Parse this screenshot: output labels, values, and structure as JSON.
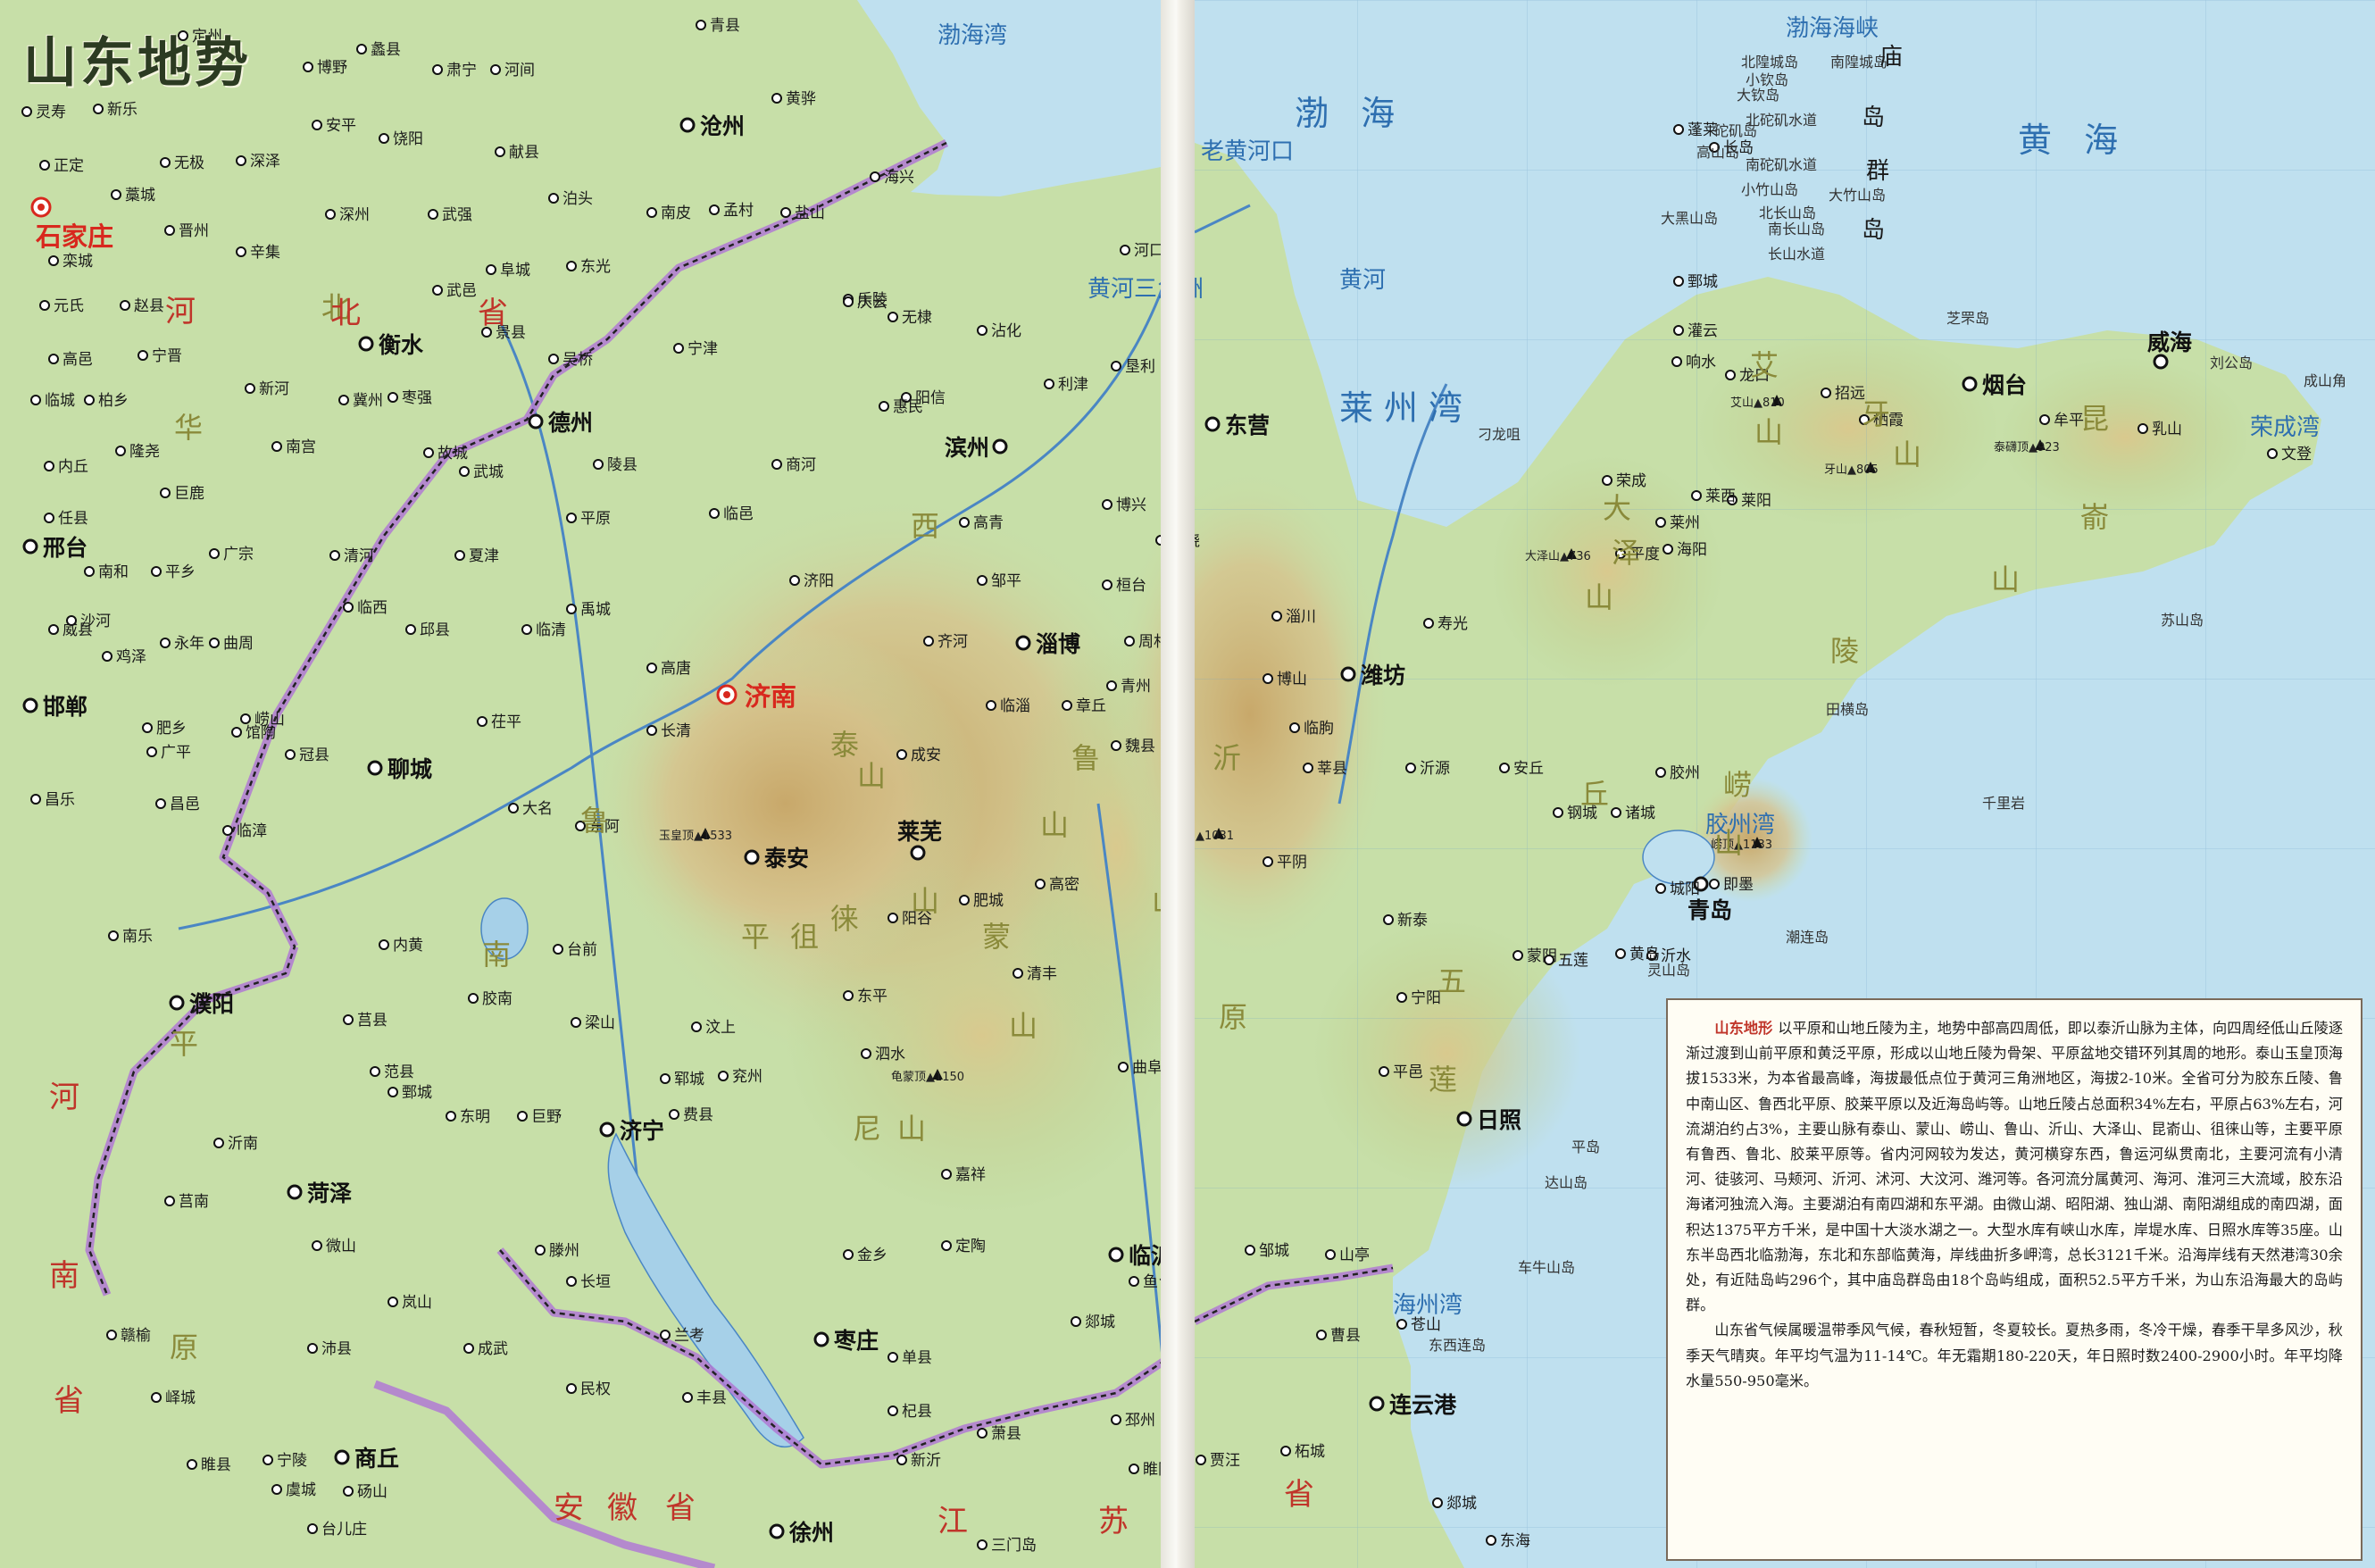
{
  "title": "山东地势",
  "legend": {
    "lead": "山东地形",
    "paragraphs": [
      "以平原和山地丘陵为主，地势中部高四周低，即以泰沂山脉为主体，向四周经低山丘陵逐渐过渡到山前平原和黄泛平原，形成以山地丘陵为骨架、平原盆地交错环列其周的地形。泰山玉皇顶海拔1533米，为本省最高峰，海拔最低点位于黄河三角洲地区，海拔2-10米。全省可分为胶东丘陵、鲁中南山区、鲁西北平原、胶莱平原以及近海岛屿等。山地丘陵占总面积34%左右，平原占63%左右，河流湖泊约占3%，主要山脉有泰山、蒙山、崂山、鲁山、沂山、大泽山、昆嵛山、徂徕山等，主要平原有鲁西、鲁北、胶莱平原等。省内河网较为发达，黄河横穿东西，鲁运河纵贯南北，主要河流有小清河、徒骇河、马颊河、沂河、沭河、大汶河、潍河等。各河流分属黄河、海河、淮河三大流域，胶东沿海诸河独流入海。主要湖泊有南四湖和东平湖。由微山湖、昭阳湖、独山湖、南阳湖组成的南四湖，面积达1375平方千米，是中国十大淡水湖之一。大型水库有峡山水库，岸堤水库、日照水库等35座。山东半岛西北临渤海，东北和东部临黄海，岸线曲折多岬湾，总长3121千米。沿海岸线有天然港湾30余处，有近陆岛屿296个，其中庙岛群岛由18个岛屿组成，面积52.5平方千米，为山东沿海最大的岛屿群。",
      "山东省气候属暖温带季风气候，春秋短暂，冬夏较长。夏热多雨，冬冷干燥，春季干旱多风沙，秋季天气晴爽。年平均气温为11-14℃。年无霜期180-220天，年日照时数2400-2900小时。年平均降水量550-950毫米。"
    ]
  },
  "capitals": {
    "shijiazhuang": "石家庄",
    "jinan": "济南"
  },
  "major_cities": {
    "dezhou": "德州",
    "hengshui": "衡水",
    "cangzhou": "沧州",
    "xingtai": "邢台",
    "handan": "邯郸",
    "liaocheng": "聊城",
    "puyang": "濮阳",
    "heze": "菏泽",
    "jining": "济宁",
    "taian": "泰安",
    "laiwu": "莱芜",
    "zibo": "淄博",
    "binzhou": "滨州",
    "dongying": "东营",
    "weifang": "潍坊",
    "yantai": "烟台",
    "weihai": "威海",
    "qingdao": "青岛",
    "rizhao": "日照",
    "linyi": "临沂",
    "zaozhuang": "枣庄",
    "xuzhou": "徐州",
    "shangqiu": "商丘",
    "lianyungang": "连云港"
  },
  "towns": [
    "灵寿",
    "定州",
    "蠡县",
    "博野",
    "肃宁",
    "河间",
    "青县",
    "新乐",
    "安平",
    "饶阳",
    "献县",
    "黄骅",
    "正定",
    "无极",
    "深泽",
    "藁城",
    "晋州",
    "深州",
    "武强",
    "泊头",
    "南皮",
    "孟村",
    "盐山",
    "海兴",
    "栾城",
    "辛集",
    "阜城",
    "东光",
    "元氏",
    "赵县",
    "武邑",
    "景县",
    "吴桥",
    "宁津",
    "乐陵",
    "庆云",
    "无棣",
    "沾化",
    "河口",
    "垦利",
    "利津",
    "高邑",
    "宁晋",
    "冀州",
    "枣强",
    "新河",
    "阳信",
    "惠民",
    "临城",
    "柏乡",
    "南宫",
    "故城",
    "陵县",
    "商河",
    "内丘",
    "隆尧",
    "巨鹿",
    "武城",
    "平原",
    "临邑",
    "高青",
    "博兴",
    "广饶",
    "任县",
    "南和",
    "平乡",
    "广宗",
    "清河",
    "夏津",
    "济阳",
    "邹平",
    "桓台",
    "威县",
    "临西",
    "禹城",
    "沙河",
    "鸡泽",
    "永年",
    "曲周",
    "邱县",
    "临清",
    "高唐",
    "齐河",
    "周村",
    "章丘",
    "临淄",
    "青州",
    "淄川",
    "肥乡",
    "馆陶",
    "茌平",
    "冠县",
    "广平",
    "长清",
    "成安",
    "魏县",
    "博山",
    "临朐",
    "寿光",
    "昌乐",
    "昌邑",
    "临漳",
    "大名",
    "东阿",
    "平阴",
    "沂源",
    "安丘",
    "高密",
    "莘县",
    "阳谷",
    "肥城",
    "新泰",
    "钢城",
    "诸城",
    "胶州",
    "即墨",
    "城阳",
    "崂山",
    "南乐",
    "内黄",
    "台前",
    "东平",
    "清丰",
    "宁阳",
    "蒙阴",
    "沂水",
    "五莲",
    "黄岛",
    "胶南",
    "梁山",
    "汶上",
    "泗水",
    "平邑",
    "莒县",
    "范县",
    "鄄城",
    "郓城",
    "兖州",
    "曲阜",
    "沂南",
    "东明",
    "巨野",
    "嘉祥",
    "邹城",
    "费县",
    "莒南",
    "微山",
    "滕州",
    "长垣",
    "定陶",
    "金乡",
    "鱼台",
    "郯城",
    "山亭",
    "苍山",
    "岚山",
    "赣榆",
    "成武",
    "兰考",
    "单县",
    "沛县",
    "峄城",
    "曹县",
    "民权",
    "丰县",
    "杞县",
    "宁陵",
    "睢县",
    "邳州",
    "砀山",
    "虞城",
    "萧县",
    "睢阳",
    "新沂",
    "台儿庄",
    "贾汪",
    "柘城",
    "郯城",
    "东海",
    "灌云",
    "响水",
    "龙口",
    "招远",
    "栖霞",
    "牟平",
    "乳山",
    "文登",
    "荣成",
    "莱州",
    "莱阳",
    "平度",
    "海阳",
    "莱西",
    "鄄城",
    "蓬莱",
    "长岛",
    "三门岛"
  ],
  "peaks": [
    {
      "name": "玉皇顶",
      "elev": "1533"
    },
    {
      "name": "沂山",
      "elev": "1031"
    },
    {
      "name": "龟蒙顶",
      "elev": "1150"
    },
    {
      "name": "大泽山",
      "elev": "736"
    },
    {
      "name": "艾山",
      "elev": "810"
    },
    {
      "name": "牙山",
      "elev": "805"
    },
    {
      "name": "泰礴顶",
      "elev": "923"
    },
    {
      "name": "崂顶",
      "elev": "1133"
    }
  ],
  "mountain_labels": [
    "泰",
    "山",
    "鲁",
    "山",
    "沂",
    "山",
    "蒙",
    "山",
    "尼",
    "山",
    "徂",
    "徕",
    "山",
    "大",
    "泽",
    "山",
    "艾",
    "山",
    "牙",
    "山",
    "昆",
    "嵛",
    "山",
    "崂",
    "山",
    "丘",
    "陵",
    "五",
    "莲"
  ],
  "plain_labels": [
    "华",
    "北",
    "平",
    "原",
    "鲁",
    "西",
    "南",
    "平",
    "原"
  ],
  "provinces": [
    "河",
    "北",
    "省",
    "河",
    "南",
    "省",
    "江",
    "苏",
    "安",
    "徽",
    "省",
    "省"
  ],
  "waters": {
    "bohai_bay": "渤海湾",
    "bohai": "渤 海",
    "laizhou_bay": "莱州湾",
    "bohai_strait": "渤海海峡",
    "yellow_sea": "黄 海",
    "haizhou_bay": "海州湾",
    "jiaozhou_bay": "胶州湾",
    "rongcheng_bay": "荣成湾",
    "yellow_river_delta": "黄河三角洲",
    "yellow_river": "黄河",
    "old_yellow_mouth": "老黄河口"
  },
  "islands": [
    "北隍城岛",
    "南隍城岛",
    "小钦岛",
    "大钦岛",
    "砣矶岛",
    "高山岛",
    "北砣矶水道",
    "南砣矶水道",
    "小竹山岛",
    "大竹山岛",
    "北长山岛",
    "南长山岛",
    "大黑山岛",
    "长山水道",
    "庙",
    "岛",
    "群",
    "岛",
    "芝罘岛",
    "刘公岛",
    "成山角",
    "苏山岛",
    "田横岛",
    "千里岩",
    "灵山岛",
    "潮连岛",
    "达山岛",
    "平岛",
    "车牛山岛",
    "东西连岛",
    "刁龙咀"
  ],
  "colors": {
    "sea": "#bfe0ef",
    "plain": "#c7dfa8",
    "hills": "#b9cf8e",
    "mountain": "#cdb07a",
    "province_border": "#a26ad0",
    "capital": "#d8281e",
    "river": "#4a86c4"
  }
}
